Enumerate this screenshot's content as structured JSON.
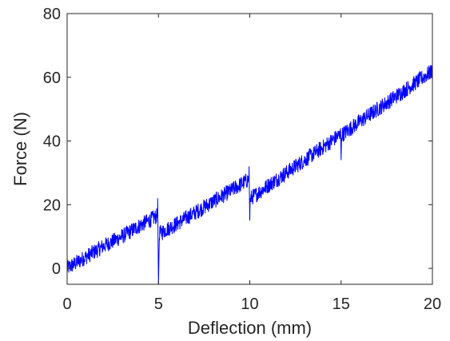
{
  "chart_data": {
    "type": "line",
    "xlabel": "Deflection (mm)",
    "ylabel": "Force (N)",
    "xlim": [
      0,
      20
    ],
    "ylim": [
      -5,
      80
    ],
    "xticks": [
      0,
      5,
      10,
      15,
      20
    ],
    "yticks": [
      0,
      20,
      40,
      60,
      80
    ],
    "grid": false,
    "line_color": "#0000ff",
    "series": [
      {
        "x": [
          0,
          1,
          2,
          3,
          4,
          4.95,
          4.96,
          5.0,
          5.04,
          5.06,
          6,
          7,
          8,
          9,
          9.95,
          9.96,
          10.0,
          10.02,
          10.05,
          11,
          12,
          13,
          14,
          14.95,
          14.97,
          15.0,
          15.02,
          15.05,
          16,
          17,
          18,
          19,
          20
        ],
        "y": [
          0,
          3.5,
          7,
          10,
          13.5,
          16.5,
          22,
          -5,
          8,
          11,
          14,
          17.5,
          21,
          24.5,
          28,
          32,
          15,
          22,
          22,
          26,
          30,
          34,
          38,
          42,
          44,
          34,
          40,
          42,
          46,
          50,
          54,
          58,
          62
        ]
      }
    ]
  }
}
